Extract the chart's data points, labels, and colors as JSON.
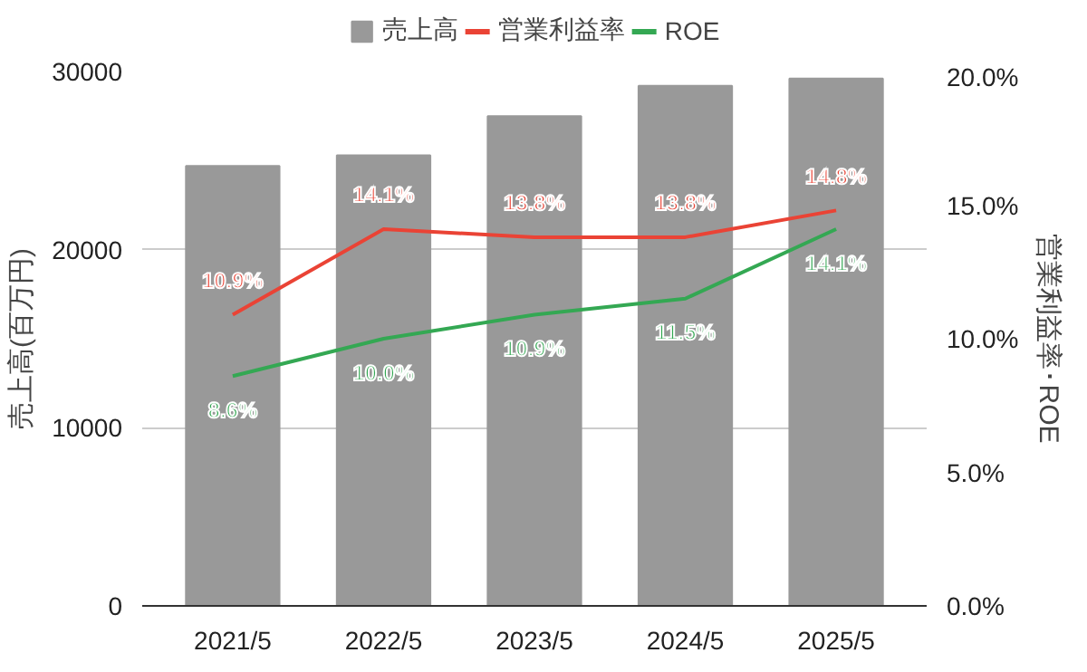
{
  "chart_data": {
    "type": "bar",
    "categories": [
      "2021/5",
      "2022/5",
      "2023/5",
      "2024/5",
      "2025/5"
    ],
    "ylabel": "売上高(百万円)",
    "y2label": "営業利益率･ROE",
    "ylim": [
      0,
      30000
    ],
    "yticks": [
      0,
      10000,
      20000,
      30000
    ],
    "y2lim": [
      0,
      20
    ],
    "y2ticks": [
      {
        "value": 0,
        "label": "0.0%"
      },
      {
        "value": 5,
        "label": "5.0%"
      },
      {
        "value": 10,
        "label": "10.0%"
      },
      {
        "value": 15,
        "label": "15.0%"
      },
      {
        "value": 20,
        "label": "20.0%"
      }
    ],
    "grid": "y",
    "legend": "top",
    "series": [
      {
        "name": "売上高",
        "color": "#999999",
        "values": [
          24700,
          25300,
          27500,
          29200,
          29600
        ]
      },
      {
        "name": "営業利益率",
        "type": "line",
        "axis": "y2",
        "color": "#ea4335",
        "values": [
          10.9,
          14.1,
          13.8,
          13.8,
          14.8
        ],
        "value_labels": [
          "10.9%",
          "14.1%",
          "13.8%",
          "13.8%",
          "14.8%"
        ]
      },
      {
        "name": "ROE",
        "type": "line",
        "axis": "y2",
        "color": "#34a853",
        "values": [
          8.6,
          10.0,
          10.9,
          11.5,
          14.1
        ],
        "value_labels": [
          "8.6%",
          "10.0%",
          "10.9%",
          "11.5%",
          "14.1%"
        ]
      }
    ]
  }
}
